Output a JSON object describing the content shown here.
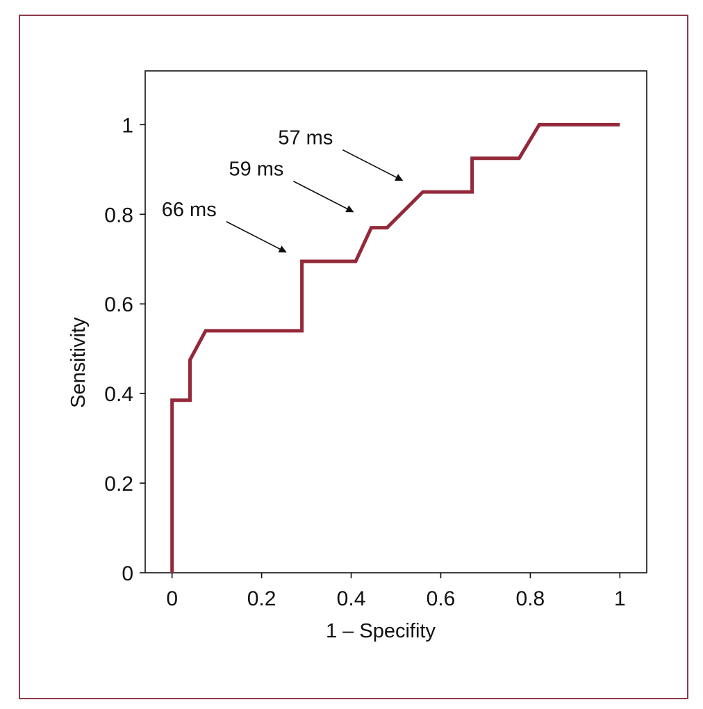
{
  "chart_data": {
    "type": "line",
    "title": "",
    "xlabel": "1 – Specifity",
    "ylabel": "Sensitivity",
    "xlim": [
      -0.06,
      1.06
    ],
    "ylim": [
      0,
      1.12
    ],
    "xticks": [
      0,
      0.2,
      0.4,
      0.6,
      0.8,
      1
    ],
    "yticks": [
      0,
      0.2,
      0.4,
      0.6,
      0.8,
      1
    ],
    "xtick_labels": [
      "0",
      "0.2",
      "0.4",
      "0.6",
      "0.8",
      "1"
    ],
    "ytick_labels": [
      "0",
      "0.2",
      "0.4",
      "0.6",
      "0.8",
      "1"
    ],
    "grid": false,
    "series": [
      {
        "color": "#94293a",
        "x": [
          0,
          0,
          0.04,
          0.04,
          0.075,
          0.29,
          0.29,
          0.41,
          0.445,
          0.48,
          0.56,
          0.67,
          0.67,
          0.775,
          0.82,
          1.0
        ],
        "y": [
          0,
          0.385,
          0.385,
          0.475,
          0.54,
          0.54,
          0.695,
          0.695,
          0.77,
          0.77,
          0.85,
          0.85,
          0.925,
          0.925,
          1.0,
          1.0
        ]
      }
    ],
    "annotations": [
      {
        "text": "57 ms",
        "x": 0.53,
        "y": 0.86
      },
      {
        "text": "59 ms",
        "x": 0.42,
        "y": 0.79
      },
      {
        "text": "66 ms",
        "x": 0.27,
        "y": 0.7
      }
    ]
  }
}
